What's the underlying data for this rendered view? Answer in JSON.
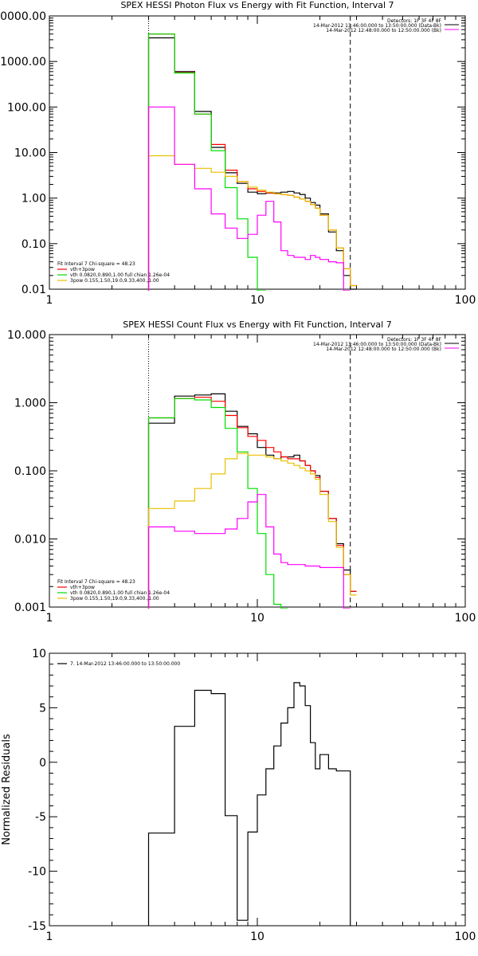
{
  "colors": {
    "total": "#000000",
    "fit": "#ff0000",
    "thermal": "#00dd00",
    "powerlaw": "#e8c000",
    "background": "#ff00ff"
  },
  "chart_data": [
    {
      "type": "line",
      "title": "SPEX HESSI Photon Flux vs Energy with Fit Function, Interval 7",
      "xlabel": "",
      "ylabel": "",
      "xscale": "log",
      "yscale": "log",
      "xlim": [
        1,
        100
      ],
      "ylim": [
        0.01,
        10000
      ],
      "yticks": [
        0.01,
        0.1,
        1,
        10,
        100,
        1000,
        10000
      ],
      "ytick_labels": [
        "0.01",
        "0.10",
        "1.00",
        "10.00",
        "100.00",
        "1000.00",
        "10000.00"
      ],
      "xticks": [
        1,
        10,
        100
      ],
      "xtick_labels": [
        "1",
        "10",
        "100"
      ],
      "fit_range": [
        3,
        28
      ],
      "info_lines": [
        "Detectors: 1F 3F 4F 8F",
        "14-Mar-2012 13:46:00.000 to 13:50:00.000 (Data-Bk)",
        "14-Mar-2012 12:48:00.000 to 12:50:00.000 (Bk)"
      ],
      "legend": [
        "Fit Interval  7    Chi-square = 48.23",
        "vth+3pow",
        "vth 0.0820,0.890,1.00  full chian 1.26e-04",
        "3pow 0.155,1.50,19.0,9.33,400.,1.00"
      ],
      "legend_position": "bottom-left",
      "edges": [
        3,
        4,
        5,
        6,
        7,
        8,
        9,
        10,
        11,
        12,
        13,
        14,
        15,
        16,
        17,
        18,
        19,
        20,
        22,
        24,
        26,
        28,
        30
      ],
      "series": [
        {
          "key": "total",
          "values": [
            3300,
            600,
            80,
            13,
            3.6,
            2.1,
            1.35,
            1.25,
            1.3,
            1.3,
            1.35,
            1.4,
            1.3,
            1.2,
            1.0,
            0.8,
            0.7,
            0.45,
            0.18,
            0.07,
            0.02,
            0.01
          ]
        },
        {
          "key": "fit",
          "values": [
            4000,
            570,
            70,
            15,
            4.1,
            2.3,
            1.6,
            1.4,
            1.3,
            1.25,
            1.2,
            1.15,
            1.05,
            0.95,
            0.85,
            0.72,
            0.6,
            0.42,
            0.2,
            0.08,
            0.028,
            0.012
          ]
        },
        {
          "key": "thermal",
          "values": [
            4000,
            560,
            70,
            11,
            1.7,
            0.35,
            0.05,
            0.009
          ]
        },
        {
          "key": "powerlaw",
          "values": [
            8.5,
            5.5,
            4.5,
            3.7,
            3.0,
            2.3,
            1.75,
            1.5,
            1.35,
            1.25,
            1.2,
            1.15,
            1.05,
            0.95,
            0.85,
            0.72,
            0.6,
            0.42,
            0.2,
            0.08,
            0.028,
            0.012
          ]
        },
        {
          "key": "background",
          "values": [
            100,
            5.5,
            1.6,
            0.45,
            0.22,
            0.13,
            0.16,
            0.42,
            0.85,
            0.3,
            0.07,
            0.055,
            0.05,
            0.05,
            0.045,
            0.055,
            0.05,
            0.045,
            0.04,
            0.038,
            0.0
          ]
        }
      ]
    },
    {
      "type": "line",
      "title": "SPEX HESSI Count Flux vs Energy with Fit Function, Interval 7",
      "xlabel": "",
      "ylabel": "",
      "xscale": "log",
      "yscale": "log",
      "xlim": [
        1,
        100
      ],
      "ylim": [
        0.001,
        10
      ],
      "yticks": [
        0.001,
        0.01,
        0.1,
        1,
        10
      ],
      "ytick_labels": [
        "0.001",
        "0.010",
        "0.100",
        "1.000",
        "10.000"
      ],
      "xticks": [
        1,
        10,
        100
      ],
      "xtick_labels": [
        "1",
        "10",
        "100"
      ],
      "fit_range": [
        3,
        28
      ],
      "info_lines": [
        "Detectors: 1F 3F 4F 8F",
        "14-Mar-2012 13:46:00.000 to 13:50:00.000 (Data-Bk)",
        "14-Mar-2012 12:48:00.000 to 12:50:00.000 (Bk)"
      ],
      "legend": [
        "Fit Interval  7    Chi-square = 48.23",
        "vth+3pow",
        "vth 0.0820,0.890,1.00  full chian 1.26e-04",
        "3pow 0.155,1.50,19.0,9.33,400.,1.00"
      ],
      "legend_position": "bottom-left",
      "edges": [
        3,
        4,
        5,
        6,
        7,
        8,
        9,
        10,
        11,
        12,
        13,
        14,
        15,
        16,
        17,
        18,
        19,
        20,
        22,
        24,
        26,
        28,
        30
      ],
      "series": [
        {
          "key": "total",
          "values": [
            0.5,
            1.25,
            1.3,
            1.35,
            0.75,
            0.45,
            0.35,
            0.22,
            0.17,
            0.15,
            0.16,
            0.16,
            0.17,
            0.14,
            0.12,
            0.1,
            0.085,
            0.05,
            0.02,
            0.0085,
            0.0035,
            0.0017
          ]
        },
        {
          "key": "fit",
          "values": [
            0.6,
            1.15,
            1.2,
            1.05,
            0.65,
            0.43,
            0.32,
            0.28,
            0.22,
            0.19,
            0.16,
            0.15,
            0.15,
            0.14,
            0.12,
            0.1,
            0.08,
            0.05,
            0.02,
            0.008,
            0.003,
            0.0017
          ]
        },
        {
          "key": "thermal",
          "values": [
            0.6,
            1.15,
            1.1,
            0.85,
            0.42,
            0.19,
            0.055,
            0.012,
            0.003,
            0.0011,
            0.0005
          ]
        },
        {
          "key": "powerlaw",
          "values": [
            0.028,
            0.036,
            0.055,
            0.09,
            0.15,
            0.18,
            0.17,
            0.17,
            0.16,
            0.15,
            0.14,
            0.13,
            0.12,
            0.11,
            0.1,
            0.09,
            0.075,
            0.045,
            0.018,
            0.0075,
            0.003,
            0.0015
          ]
        },
        {
          "key": "background",
          "values": [
            0.015,
            0.013,
            0.012,
            0.012,
            0.014,
            0.02,
            0.035,
            0.045,
            0.015,
            0.006,
            0.0045,
            0.0042,
            0.0042,
            0.0042,
            0.004,
            0.004,
            0.004,
            0.0038,
            0.0038,
            0.0038,
            0.0008
          ]
        }
      ]
    },
    {
      "type": "line",
      "title": "",
      "xlabel": "",
      "ylabel": "Normalized Residuals",
      "xscale": "log",
      "yscale": "linear",
      "xlim": [
        1,
        100
      ],
      "ylim": [
        -15,
        10
      ],
      "yticks": [
        -15,
        -10,
        -5,
        0,
        5,
        10
      ],
      "ytick_labels": [
        "-15",
        "-10",
        "-5",
        "0",
        "5",
        "10"
      ],
      "xticks": [
        1,
        10,
        100
      ],
      "xtick_labels": [
        "1",
        "10",
        "100"
      ],
      "legend": [
        "7. 14-Mar-2012 13:46:00.000 to 13:50:00.000"
      ],
      "legend_position": "top-left",
      "edges": [
        3,
        4,
        5,
        6,
        7,
        8,
        9,
        10,
        11,
        12,
        13,
        14,
        15,
        16,
        17,
        18,
        19,
        20,
        22,
        24,
        26,
        28
      ],
      "series": [
        {
          "key": "total",
          "values": [
            -6.5,
            3.3,
            6.6,
            6.3,
            -4.9,
            -14.5,
            -6.4,
            -3.0,
            -0.6,
            1.5,
            3.6,
            5.0,
            7.3,
            7.0,
            5.2,
            1.8,
            -0.6,
            0.7,
            -0.6,
            -0.8,
            -0.8
          ],
          "drop_to_bottom": true
        }
      ]
    }
  ]
}
